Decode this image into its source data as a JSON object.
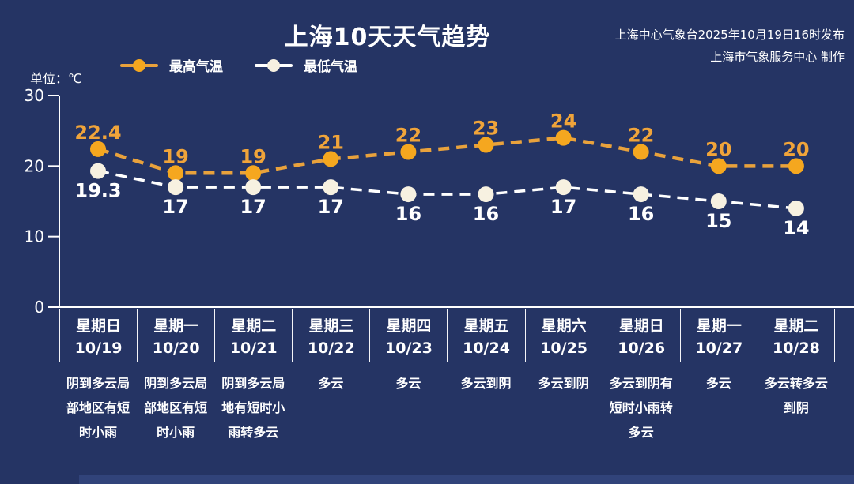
{
  "header": {
    "title": "上海10天天气趋势",
    "issued_by": "上海中心气象台2025年10月19日16时发布",
    "produced_by": "上海市气象服务中心 制作"
  },
  "chart_data": {
    "type": "line",
    "title": "上海10天天气趋势",
    "unit_label": "单位：℃",
    "ylim": [
      0,
      30
    ],
    "yticks": [
      0,
      10,
      20,
      30
    ],
    "grid": false,
    "legend_position": "top-left",
    "line_style": "dashed",
    "colors": {
      "background": "#253464",
      "axis": "#ffffff",
      "high_line": "#e9a23c",
      "high_marker": "#f5a71f",
      "high_label": "#f0a43a",
      "low_line": "#ffffff",
      "low_marker": "#f7f1e1",
      "low_label": "#ffffff"
    },
    "categories": [
      {
        "weekday": "星期日",
        "date": "10/19",
        "weather": "阴到多云局部地区有短时小雨"
      },
      {
        "weekday": "星期一",
        "date": "10/20",
        "weather": "阴到多云局部地区有短时小雨"
      },
      {
        "weekday": "星期二",
        "date": "10/21",
        "weather": "阴到多云局地有短时小雨转多云"
      },
      {
        "weekday": "星期三",
        "date": "10/22",
        "weather": "多云"
      },
      {
        "weekday": "星期四",
        "date": "10/23",
        "weather": "多云"
      },
      {
        "weekday": "星期五",
        "date": "10/24",
        "weather": "多云到阴"
      },
      {
        "weekday": "星期六",
        "date": "10/25",
        "weather": "多云到阴"
      },
      {
        "weekday": "星期日",
        "date": "10/26",
        "weather": "多云到阴有短时小雨转多云"
      },
      {
        "weekday": "星期一",
        "date": "10/27",
        "weather": "多云"
      },
      {
        "weekday": "星期二",
        "date": "10/28",
        "weather": "多云转多云到阴"
      }
    ],
    "series": [
      {
        "name": "最高气温",
        "values": [
          22.4,
          19,
          19,
          21,
          22,
          23,
          24,
          22,
          20,
          20
        ]
      },
      {
        "name": "最低气温",
        "values": [
          19.3,
          17,
          17,
          17,
          16,
          16,
          17,
          16,
          15,
          14
        ]
      }
    ]
  }
}
